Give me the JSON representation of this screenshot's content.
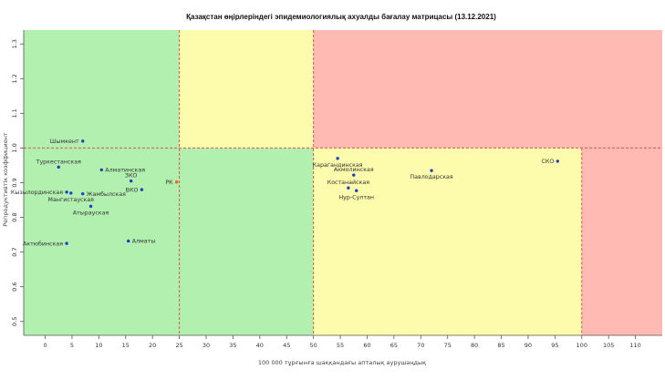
{
  "chart_data": {
    "type": "scatter",
    "title": "Қазақстан өңірлеріндегі эпидемиологиялық ахуалды бағалау матрицасы  (13.12.2021)",
    "xlabel": "100 000 тұрғынға шаққандағы апталық аурушаңдық",
    "ylabel": "Репродуктивтік коэффициент",
    "xlim": [
      -4,
      115
    ],
    "ylim": [
      0.46,
      1.34
    ],
    "x_ticks": [
      0,
      5,
      10,
      15,
      20,
      25,
      30,
      35,
      40,
      45,
      50,
      55,
      60,
      65,
      70,
      75,
      80,
      85,
      90,
      95,
      100,
      105,
      110
    ],
    "y_ticks": [
      0.5,
      0.6,
      0.7,
      0.8,
      0.9,
      1.0,
      1.1,
      1.2,
      1.3
    ],
    "thresholds": {
      "x": [
        25,
        50,
        100
      ],
      "y": 1.0
    },
    "zones": [
      {
        "x0": -4,
        "x1": 25,
        "y0": 1.0,
        "y1": 1.34,
        "color": "#b2f0b0"
      },
      {
        "x0": 25,
        "x1": 50,
        "y0": 1.0,
        "y1": 1.34,
        "color": "#fcfcac"
      },
      {
        "x0": 50,
        "x1": 115,
        "y0": 1.0,
        "y1": 1.34,
        "color": "#ffbab3"
      },
      {
        "x0": -4,
        "x1": 50,
        "y0": 0.46,
        "y1": 1.0,
        "color": "#b2f0b0"
      },
      {
        "x0": 50,
        "x1": 100,
        "y0": 0.46,
        "y1": 1.0,
        "color": "#fcfcac"
      },
      {
        "x0": 100,
        "x1": 115,
        "y0": 0.46,
        "y1": 1.0,
        "color": "#ffbab3"
      }
    ],
    "threshold_color": "#d9534f",
    "point_color": "#1f3fbf",
    "highlight_color": "#e8641e",
    "points": [
      {
        "name": "Шымкент",
        "x": 7,
        "y": 1.02,
        "label_pos": "left"
      },
      {
        "name": "Туркестанская",
        "x": 2.5,
        "y": 0.945,
        "label_pos": "above"
      },
      {
        "name": "Алматинская",
        "x": 10.5,
        "y": 0.937,
        "label_pos": "right"
      },
      {
        "name": "ЗКО",
        "x": 16,
        "y": 0.905,
        "label_pos": "above"
      },
      {
        "name": "ВКО",
        "x": 18,
        "y": 0.88,
        "label_pos": "left"
      },
      {
        "name": "РК",
        "x": 24.5,
        "y": 0.902,
        "label_pos": "left",
        "highlight": true
      },
      {
        "name": "Кызылординская",
        "x": 4,
        "y": 0.873,
        "label_pos": "left"
      },
      {
        "name": "Мангистауская",
        "x": 4.8,
        "y": 0.87,
        "label_pos": "below"
      },
      {
        "name": "Жамбылская",
        "x": 7,
        "y": 0.868,
        "label_pos": "right"
      },
      {
        "name": "Атырауская",
        "x": 8.5,
        "y": 0.832,
        "label_pos": "below"
      },
      {
        "name": "Алматы",
        "x": 15.5,
        "y": 0.732,
        "label_pos": "right"
      },
      {
        "name": "Актюбинская",
        "x": 4,
        "y": 0.725,
        "label_pos": "left"
      },
      {
        "name": "Карагандинская",
        "x": 54.5,
        "y": 0.97,
        "label_pos": "below"
      },
      {
        "name": "Акмолинская",
        "x": 57.5,
        "y": 0.922,
        "label_pos": "above"
      },
      {
        "name": "Костанайская",
        "x": 56.5,
        "y": 0.885,
        "label_pos": "above"
      },
      {
        "name": "Нур-Султан",
        "x": 58,
        "y": 0.877,
        "label_pos": "below"
      },
      {
        "name": "Павлодарская",
        "x": 72,
        "y": 0.935,
        "label_pos": "below"
      },
      {
        "name": "СКО",
        "x": 95.5,
        "y": 0.962,
        "label_pos": "left"
      }
    ]
  }
}
